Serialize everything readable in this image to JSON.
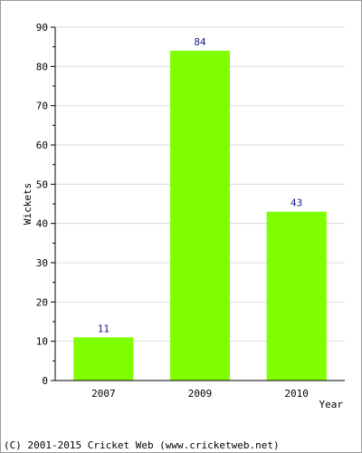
{
  "chart_data": {
    "type": "bar",
    "categories": [
      "2007",
      "2009",
      "2010"
    ],
    "values": [
      11,
      84,
      43
    ],
    "xlabel": "Year",
    "ylabel": "Wickets",
    "ylim": [
      0,
      90
    ],
    "yticks": [
      0,
      10,
      20,
      30,
      40,
      50,
      60,
      70,
      80,
      90
    ],
    "grid": true,
    "data_labels": true,
    "bar_color": "#80ff00",
    "label_color": "#1a1a8c"
  },
  "footer": "(C) 2001-2015 Cricket Web (www.cricketweb.net)"
}
